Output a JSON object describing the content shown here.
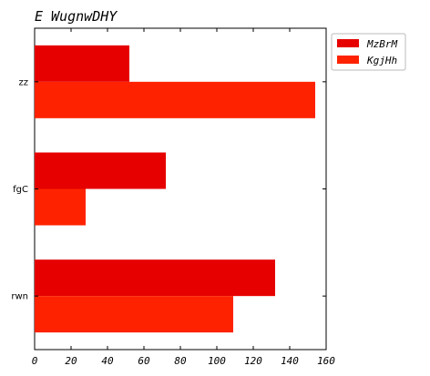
{
  "chart_data": {
    "type": "bar",
    "orientation": "horizontal",
    "title": "E WugnwDHY",
    "xlabel": "",
    "ylabel": "",
    "categories": [
      "rwn",
      "fgC",
      "zz"
    ],
    "series": [
      {
        "name": "MzBrM",
        "values": [
          132,
          72,
          52
        ],
        "color": "#e60000"
      },
      {
        "name": "KgjHh",
        "values": [
          109,
          28,
          154
        ],
        "color": "#ff2200"
      }
    ],
    "xlim": [
      0,
      160
    ],
    "xticks": [
      "0",
      "20",
      "40",
      "60",
      "80",
      "100",
      "120",
      "140",
      "160"
    ],
    "grid": false,
    "legend": "outside-top-right"
  }
}
